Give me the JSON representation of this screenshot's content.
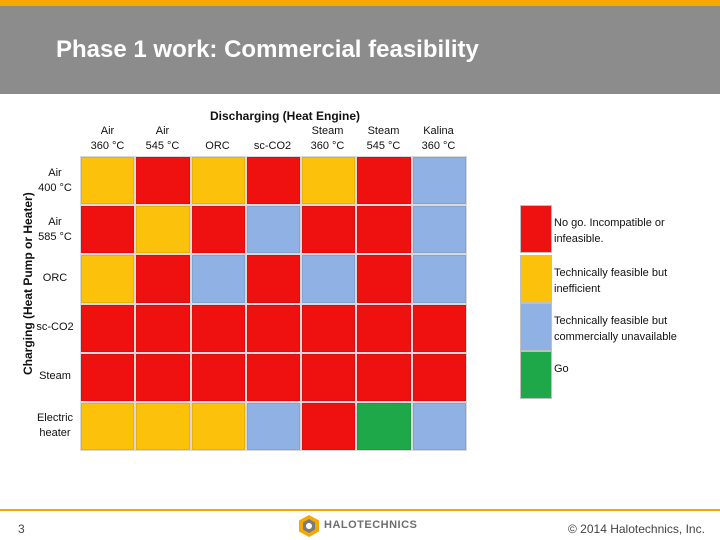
{
  "header": {
    "title": "Phase 1 work: Commercial feasibility"
  },
  "axes": {
    "top_title": "Discharging (Heat Engine)",
    "left_title": "Charging (Heat Pump or Heater)"
  },
  "columns": [
    [
      "Air",
      "360 °C"
    ],
    [
      "Air",
      "545 °C"
    ],
    [
      "ORC"
    ],
    [
      "sc-CO2"
    ],
    [
      "Steam",
      "360 °C"
    ],
    [
      "Steam",
      "545 °C"
    ],
    [
      "Kalina",
      "360 °C"
    ]
  ],
  "rows": [
    [
      "Air",
      "400 °C"
    ],
    [
      "Air",
      "585 °C"
    ],
    [
      "ORC"
    ],
    [
      "sc-CO2"
    ],
    [
      "Steam"
    ],
    [
      "Electric",
      "heater"
    ]
  ],
  "status_colors": {
    "nogo": "#ef1010",
    "inefficient": "#fcc10a",
    "unavailable": "#8fb1e3",
    "go": "#1fa84a"
  },
  "matrix": [
    [
      "inefficient",
      "nogo",
      "inefficient",
      "nogo",
      "inefficient",
      "nogo",
      "unavailable"
    ],
    [
      "nogo",
      "inefficient",
      "nogo",
      "unavailable",
      "nogo",
      "nogo",
      "unavailable"
    ],
    [
      "inefficient",
      "nogo",
      "unavailable",
      "nogo",
      "unavailable",
      "nogo",
      "unavailable"
    ],
    [
      "nogo",
      "nogo",
      "nogo",
      "nogo",
      "nogo",
      "nogo",
      "nogo"
    ],
    [
      "nogo",
      "nogo",
      "nogo",
      "nogo",
      "nogo",
      "nogo",
      "nogo"
    ],
    [
      "inefficient",
      "inefficient",
      "inefficient",
      "unavailable",
      "nogo",
      "go",
      "unavailable"
    ]
  ],
  "legend": [
    {
      "status": "nogo",
      "label": "No go. Incompatible or infeasible."
    },
    {
      "status": "inefficient",
      "label": "Technically feasible but inefficient"
    },
    {
      "status": "unavailable",
      "label": "Technically feasible but commercially unavailable"
    },
    {
      "status": "go",
      "label": "Go"
    }
  ],
  "footer": {
    "page_number": "3",
    "logo_text": "HALOTECHNICS",
    "copyright": "© 2014 Halotechnics, Inc."
  }
}
